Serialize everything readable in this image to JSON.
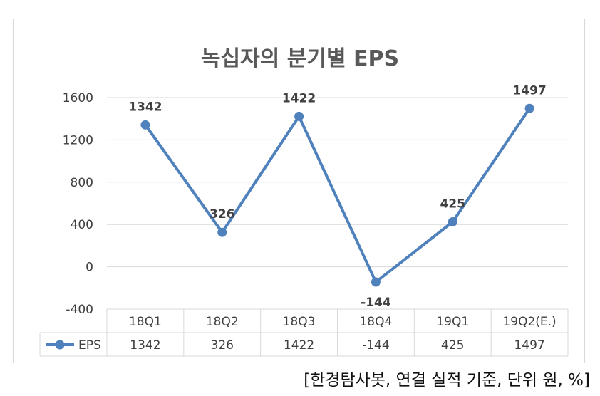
{
  "chart_data": {
    "type": "line",
    "title": "녹십자의 분기별 EPS",
    "categories": [
      "18Q1",
      "18Q2",
      "18Q3",
      "18Q4",
      "19Q1",
      "19Q2(E.)"
    ],
    "series": [
      {
        "name": "EPS",
        "values": [
          1342,
          326,
          1422,
          -144,
          425,
          1497
        ]
      }
    ],
    "ylim": [
      -400,
      1600
    ],
    "yticks": [
      -400,
      0,
      400,
      800,
      1200,
      1600
    ],
    "ytick_labels": [
      "-400",
      "0",
      "400",
      "800",
      "1200",
      "1600"
    ],
    "grid": true,
    "data_table": true,
    "data_labels": [
      "1342",
      "326",
      "1422",
      "-144",
      "425",
      "1497"
    ],
    "table_values": [
      "1342",
      "326",
      "1422",
      "-144",
      "425",
      "1497"
    ],
    "legend_label": "EPS",
    "colors": {
      "line": "#4f81bd",
      "grid": "#d9d9d9",
      "text": "#404040",
      "title": "#595959"
    }
  },
  "source_note": "[한경탐사봇, 연결 실적 기준, 단위 원, %]"
}
